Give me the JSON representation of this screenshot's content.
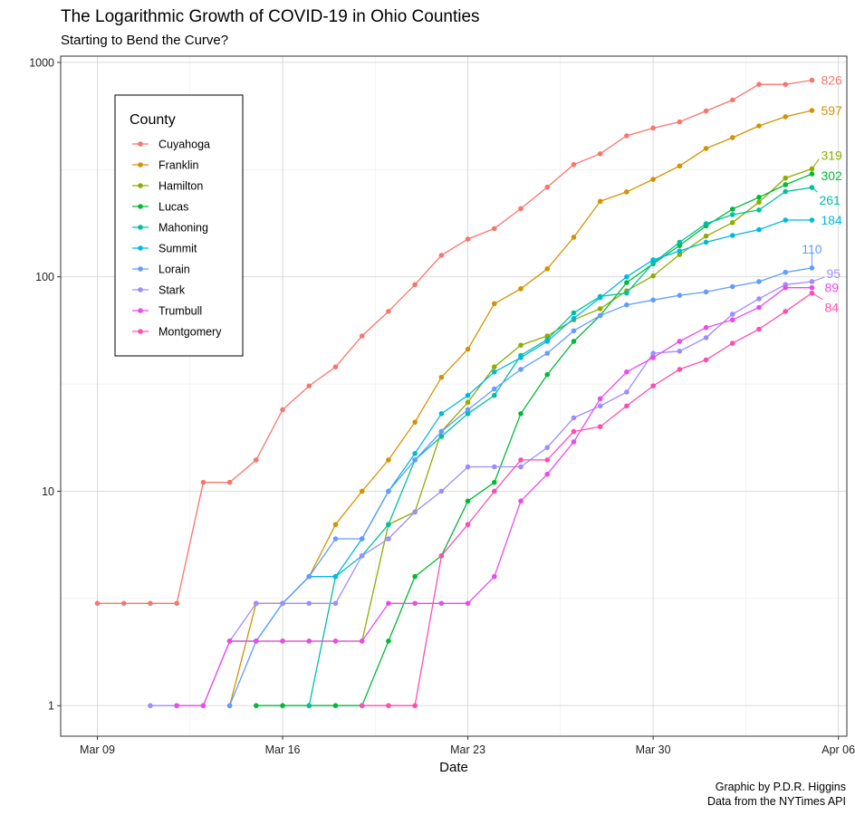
{
  "chart_data": {
    "type": "line",
    "title": "The Logarithmic Growth of COVID-19 in Ohio Counties",
    "subtitle": "Starting to Bend the Curve?",
    "xlabel": "Date",
    "ylabel": "",
    "y_scale": "log10",
    "ylim": [
      0.72,
      1070
    ],
    "y_ticks": [
      1,
      10,
      100,
      1000
    ],
    "y_tick_labels": [
      "1",
      "10",
      "100",
      "1000"
    ],
    "x_start_date": "2020-03-09",
    "x_end_date": "2020-04-05",
    "x_ticks": [
      "Mar 09",
      "Mar 16",
      "Mar 23",
      "Mar 30",
      "Apr 06"
    ],
    "grid": true,
    "legend_title": "County",
    "legend_position": "top-left",
    "caption": [
      "Graphic by P.D.R. Higgins",
      "Data from the NYTimes API"
    ],
    "series": [
      {
        "name": "Cuyahoga",
        "color": "#F8766D",
        "end_label": "826",
        "points": [
          [
            "2020-03-09",
            3
          ],
          [
            "2020-03-10",
            3
          ],
          [
            "2020-03-11",
            3
          ],
          [
            "2020-03-12",
            3
          ],
          [
            "2020-03-13",
            11
          ],
          [
            "2020-03-14",
            11
          ],
          [
            "2020-03-15",
            14
          ],
          [
            "2020-03-16",
            24
          ],
          [
            "2020-03-17",
            31
          ],
          [
            "2020-03-18",
            38
          ],
          [
            "2020-03-19",
            53
          ],
          [
            "2020-03-20",
            69
          ],
          [
            "2020-03-21",
            92
          ],
          [
            "2020-03-22",
            126
          ],
          [
            "2020-03-23",
            150
          ],
          [
            "2020-03-24",
            168
          ],
          [
            "2020-03-25",
            208
          ],
          [
            "2020-03-26",
            262
          ],
          [
            "2020-03-27",
            334
          ],
          [
            "2020-03-28",
            375
          ],
          [
            "2020-03-29",
            455
          ],
          [
            "2020-03-30",
            494
          ],
          [
            "2020-03-31",
            528
          ],
          [
            "2020-04-01",
            594
          ],
          [
            "2020-04-02",
            668
          ],
          [
            "2020-04-03",
            790
          ],
          [
            "2020-04-04",
            790
          ],
          [
            "2020-04-05",
            826
          ]
        ]
      },
      {
        "name": "Franklin",
        "color": "#D39200",
        "end_label": "597",
        "points": [
          [
            "2020-03-14",
            1
          ],
          [
            "2020-03-15",
            3
          ],
          [
            "2020-03-16",
            3
          ],
          [
            "2020-03-17",
            4
          ],
          [
            "2020-03-18",
            7
          ],
          [
            "2020-03-19",
            10
          ],
          [
            "2020-03-20",
            14
          ],
          [
            "2020-03-21",
            21
          ],
          [
            "2020-03-22",
            34
          ],
          [
            "2020-03-23",
            46
          ],
          [
            "2020-03-24",
            75
          ],
          [
            "2020-03-25",
            88
          ],
          [
            "2020-03-26",
            109
          ],
          [
            "2020-03-27",
            153
          ],
          [
            "2020-03-28",
            225
          ],
          [
            "2020-03-29",
            249
          ],
          [
            "2020-03-30",
            285
          ],
          [
            "2020-03-31",
            329
          ],
          [
            "2020-04-01",
            397
          ],
          [
            "2020-04-02",
            446
          ],
          [
            "2020-04-03",
            506
          ],
          [
            "2020-04-04",
            558
          ],
          [
            "2020-04-05",
            597
          ]
        ]
      },
      {
        "name": "Hamilton",
        "color": "#93AA00",
        "end_label": "319",
        "points": [
          [
            "2020-03-14",
            2
          ],
          [
            "2020-03-15",
            2
          ],
          [
            "2020-03-16",
            2
          ],
          [
            "2020-03-17",
            2
          ],
          [
            "2020-03-18",
            2
          ],
          [
            "2020-03-19",
            2
          ],
          [
            "2020-03-20",
            7
          ],
          [
            "2020-03-21",
            8
          ],
          [
            "2020-03-22",
            19
          ],
          [
            "2020-03-23",
            26
          ],
          [
            "2020-03-24",
            38
          ],
          [
            "2020-03-25",
            48
          ],
          [
            "2020-03-26",
            53
          ],
          [
            "2020-03-27",
            63
          ],
          [
            "2020-03-28",
            71
          ],
          [
            "2020-03-29",
            86
          ],
          [
            "2020-03-30",
            101
          ],
          [
            "2020-03-31",
            127
          ],
          [
            "2020-04-01",
            155
          ],
          [
            "2020-04-02",
            179
          ],
          [
            "2020-04-03",
            223
          ],
          [
            "2020-04-04",
            289
          ],
          [
            "2020-04-05",
            319
          ]
        ]
      },
      {
        "name": "Lucas",
        "color": "#00BA38",
        "end_label": "302",
        "points": [
          [
            "2020-03-15",
            1
          ],
          [
            "2020-03-16",
            1
          ],
          [
            "2020-03-17",
            1
          ],
          [
            "2020-03-18",
            1
          ],
          [
            "2020-03-19",
            1
          ],
          [
            "2020-03-20",
            2
          ],
          [
            "2020-03-21",
            4
          ],
          [
            "2020-03-22",
            5
          ],
          [
            "2020-03-23",
            9
          ],
          [
            "2020-03-24",
            11
          ],
          [
            "2020-03-25",
            23
          ],
          [
            "2020-03-26",
            35
          ],
          [
            "2020-03-27",
            50
          ],
          [
            "2020-03-28",
            66
          ],
          [
            "2020-03-29",
            94
          ],
          [
            "2020-03-30",
            115
          ],
          [
            "2020-03-31",
            140
          ],
          [
            "2020-04-01",
            173
          ],
          [
            "2020-04-02",
            207
          ],
          [
            "2020-04-03",
            235
          ],
          [
            "2020-04-04",
            269
          ],
          [
            "2020-04-05",
            302
          ]
        ]
      },
      {
        "name": "Mahoning",
        "color": "#00C19F",
        "end_label": "261",
        "points": [
          [
            "2020-03-17",
            1
          ],
          [
            "2020-03-18",
            4
          ],
          [
            "2020-03-19",
            5
          ],
          [
            "2020-03-20",
            7
          ],
          [
            "2020-03-21",
            14
          ],
          [
            "2020-03-22",
            18
          ],
          [
            "2020-03-23",
            23
          ],
          [
            "2020-03-24",
            28
          ],
          [
            "2020-03-25",
            43
          ],
          [
            "2020-03-26",
            51
          ],
          [
            "2020-03-27",
            68
          ],
          [
            "2020-03-28",
            81
          ],
          [
            "2020-03-29",
            84
          ],
          [
            "2020-03-30",
            116
          ],
          [
            "2020-03-31",
            145
          ],
          [
            "2020-04-01",
            177
          ],
          [
            "2020-04-02",
            195
          ],
          [
            "2020-04-03",
            205
          ],
          [
            "2020-04-04",
            250
          ],
          [
            "2020-04-05",
            261
          ]
        ]
      },
      {
        "name": "Summit",
        "color": "#00B9E3",
        "end_label": "184",
        "points": [
          [
            "2020-03-14",
            2
          ],
          [
            "2020-03-15",
            2
          ],
          [
            "2020-03-16",
            3
          ],
          [
            "2020-03-17",
            4
          ],
          [
            "2020-03-18",
            4
          ],
          [
            "2020-03-19",
            6
          ],
          [
            "2020-03-20",
            10
          ],
          [
            "2020-03-21",
            15
          ],
          [
            "2020-03-22",
            23
          ],
          [
            "2020-03-23",
            28
          ],
          [
            "2020-03-24",
            36
          ],
          [
            "2020-03-25",
            42
          ],
          [
            "2020-03-26",
            50
          ],
          [
            "2020-03-27",
            64
          ],
          [
            "2020-03-28",
            80
          ],
          [
            "2020-03-29",
            100
          ],
          [
            "2020-03-30",
            120
          ],
          [
            "2020-03-31",
            132
          ],
          [
            "2020-04-01",
            145
          ],
          [
            "2020-04-02",
            156
          ],
          [
            "2020-04-03",
            166
          ],
          [
            "2020-04-04",
            184
          ],
          [
            "2020-04-05",
            184
          ]
        ]
      },
      {
        "name": "Lorain",
        "color": "#619CFF",
        "end_label": "110",
        "points": [
          [
            "2020-03-14",
            1
          ],
          [
            "2020-03-15",
            2
          ],
          [
            "2020-03-16",
            3
          ],
          [
            "2020-03-17",
            4
          ],
          [
            "2020-03-18",
            6
          ],
          [
            "2020-03-19",
            6
          ],
          [
            "2020-03-20",
            10
          ],
          [
            "2020-03-21",
            14
          ],
          [
            "2020-03-22",
            19
          ],
          [
            "2020-03-23",
            24
          ],
          [
            "2020-03-24",
            30
          ],
          [
            "2020-03-25",
            37
          ],
          [
            "2020-03-26",
            44
          ],
          [
            "2020-03-27",
            56
          ],
          [
            "2020-03-28",
            66
          ],
          [
            "2020-03-29",
            74
          ],
          [
            "2020-03-30",
            78
          ],
          [
            "2020-03-31",
            82
          ],
          [
            "2020-04-01",
            85
          ],
          [
            "2020-04-02",
            90
          ],
          [
            "2020-04-03",
            95
          ],
          [
            "2020-04-04",
            105
          ],
          [
            "2020-04-05",
            110
          ]
        ]
      },
      {
        "name": "Stark",
        "color": "#9F8CFF",
        "end_label": "95",
        "points": [
          [
            "2020-03-11",
            1
          ],
          [
            "2020-03-12",
            1
          ],
          [
            "2020-03-13",
            1
          ],
          [
            "2020-03-14",
            2
          ],
          [
            "2020-03-15",
            3
          ],
          [
            "2020-03-16",
            3
          ],
          [
            "2020-03-17",
            3
          ],
          [
            "2020-03-18",
            3
          ],
          [
            "2020-03-19",
            5
          ],
          [
            "2020-03-20",
            6
          ],
          [
            "2020-03-21",
            8
          ],
          [
            "2020-03-22",
            10
          ],
          [
            "2020-03-23",
            13
          ],
          [
            "2020-03-24",
            13
          ],
          [
            "2020-03-25",
            13
          ],
          [
            "2020-03-26",
            16
          ],
          [
            "2020-03-27",
            22
          ],
          [
            "2020-03-28",
            25
          ],
          [
            "2020-03-29",
            29
          ],
          [
            "2020-03-30",
            44
          ],
          [
            "2020-03-31",
            45
          ],
          [
            "2020-04-01",
            52
          ],
          [
            "2020-04-02",
            67
          ],
          [
            "2020-04-03",
            79
          ],
          [
            "2020-04-04",
            92
          ],
          [
            "2020-04-05",
            95
          ]
        ]
      },
      {
        "name": "Trumbull",
        "color": "#E94BEE",
        "end_label": "89",
        "points": [
          [
            "2020-03-12",
            1
          ],
          [
            "2020-03-13",
            1
          ],
          [
            "2020-03-14",
            2
          ],
          [
            "2020-03-15",
            2
          ],
          [
            "2020-03-16",
            2
          ],
          [
            "2020-03-17",
            2
          ],
          [
            "2020-03-18",
            2
          ],
          [
            "2020-03-19",
            2
          ],
          [
            "2020-03-20",
            3
          ],
          [
            "2020-03-21",
            3
          ],
          [
            "2020-03-22",
            3
          ],
          [
            "2020-03-23",
            3
          ],
          [
            "2020-03-24",
            4
          ],
          [
            "2020-03-25",
            9
          ],
          [
            "2020-03-26",
            12
          ],
          [
            "2020-03-27",
            17
          ],
          [
            "2020-03-28",
            27
          ],
          [
            "2020-03-29",
            36
          ],
          [
            "2020-03-30",
            42
          ],
          [
            "2020-03-31",
            50
          ],
          [
            "2020-04-01",
            58
          ],
          [
            "2020-04-02",
            63
          ],
          [
            "2020-04-03",
            72
          ],
          [
            "2020-04-04",
            89
          ],
          [
            "2020-04-05",
            89
          ]
        ]
      },
      {
        "name": "Montgomery",
        "color": "#FF4DAF",
        "end_label": "84",
        "points": [
          [
            "2020-03-19",
            1
          ],
          [
            "2020-03-20",
            1
          ],
          [
            "2020-03-21",
            1
          ],
          [
            "2020-03-22",
            5
          ],
          [
            "2020-03-23",
            7
          ],
          [
            "2020-03-24",
            10
          ],
          [
            "2020-03-25",
            14
          ],
          [
            "2020-03-26",
            14
          ],
          [
            "2020-03-27",
            19
          ],
          [
            "2020-03-28",
            20
          ],
          [
            "2020-03-29",
            25
          ],
          [
            "2020-03-30",
            31
          ],
          [
            "2020-03-31",
            37
          ],
          [
            "2020-04-01",
            41
          ],
          [
            "2020-04-02",
            49
          ],
          [
            "2020-04-03",
            57
          ],
          [
            "2020-04-04",
            69
          ],
          [
            "2020-04-05",
            84
          ]
        ]
      }
    ]
  }
}
